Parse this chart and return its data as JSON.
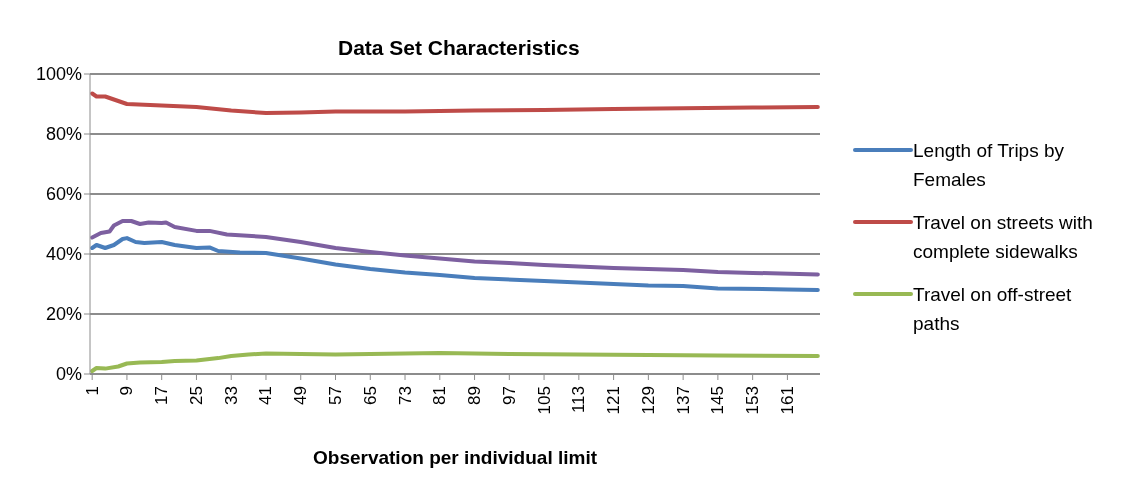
{
  "chart_data": {
    "type": "line",
    "title": "Data Set Characteristics",
    "xlabel": "Observation per individual limit",
    "xlim": [
      0.5,
      168.5
    ],
    "xticks": [
      1,
      9,
      17,
      25,
      33,
      41,
      49,
      57,
      65,
      73,
      81,
      89,
      97,
      105,
      113,
      121,
      129,
      137,
      145,
      153,
      161
    ],
    "ylim": [
      0,
      100
    ],
    "yticks": [
      {
        "value": 0,
        "label": "0%"
      },
      {
        "value": 20,
        "label": "20%"
      },
      {
        "value": 40,
        "label": "40%"
      },
      {
        "value": 60,
        "label": "60%"
      },
      {
        "value": 80,
        "label": "80%"
      },
      {
        "value": 100,
        "label": "100%"
      }
    ],
    "grid": "y",
    "legend": "right",
    "marker": "none",
    "line_style": "solid",
    "series": [
      {
        "name": "Length of Trips by Females",
        "color": "#4a7ebb",
        "x": [
          1,
          2,
          4,
          6,
          8,
          9,
          11,
          13,
          17,
          20,
          25,
          28,
          30,
          35,
          41,
          49,
          57,
          65,
          73,
          81,
          89,
          105,
          113,
          129,
          137,
          145,
          161,
          168
        ],
        "values": [
          42,
          43,
          42,
          43,
          45,
          45.3,
          44,
          43.7,
          44,
          43,
          42,
          42.2,
          41,
          40.5,
          40.3,
          38.5,
          36.5,
          35,
          33.8,
          33,
          32,
          31,
          30.5,
          29.5,
          29.3,
          28.5,
          28.2,
          28
        ]
      },
      {
        "name": "Travel on streets with complete sidewalks",
        "color": "#be4b48",
        "x": [
          1,
          2,
          4,
          9,
          17,
          25,
          33,
          41,
          49,
          57,
          73,
          89,
          105,
          121,
          137,
          153,
          168
        ],
        "values": [
          93.5,
          92.5,
          92.5,
          90,
          89.5,
          89,
          87.8,
          87,
          87.2,
          87.5,
          87.5,
          87.8,
          88,
          88.3,
          88.6,
          88.8,
          89
        ]
      },
      {
        "name": "Travel on off-street paths",
        "color": "#98b954",
        "x": [
          1,
          2,
          4,
          7,
          9,
          12,
          17,
          20,
          25,
          30,
          33,
          37,
          41,
          57,
          73,
          81,
          97,
          121,
          145,
          168
        ],
        "values": [
          1,
          2,
          1.8,
          2.5,
          3.5,
          3.8,
          4,
          4.3,
          4.5,
          5.3,
          6,
          6.5,
          6.8,
          6.5,
          6.8,
          7,
          6.7,
          6.4,
          6.2,
          6
        ]
      },
      {
        "color": "#7d60a0",
        "x": [
          1,
          3,
          5,
          6,
          8,
          10,
          12,
          14,
          17,
          18,
          20,
          25,
          28,
          32,
          41,
          49,
          57,
          65,
          73,
          81,
          89,
          97,
          105,
          113,
          121,
          129,
          137,
          145,
          153,
          168
        ],
        "values": [
          45.5,
          47,
          47.5,
          49.5,
          51,
          51,
          50,
          50.5,
          50.3,
          50.5,
          49,
          47.7,
          47.7,
          46.5,
          45.7,
          44,
          42,
          40.7,
          39.5,
          38.5,
          37.5,
          37,
          36.3,
          35.8,
          35.3,
          35,
          34.7,
          34,
          33.7,
          33.2
        ]
      }
    ]
  }
}
